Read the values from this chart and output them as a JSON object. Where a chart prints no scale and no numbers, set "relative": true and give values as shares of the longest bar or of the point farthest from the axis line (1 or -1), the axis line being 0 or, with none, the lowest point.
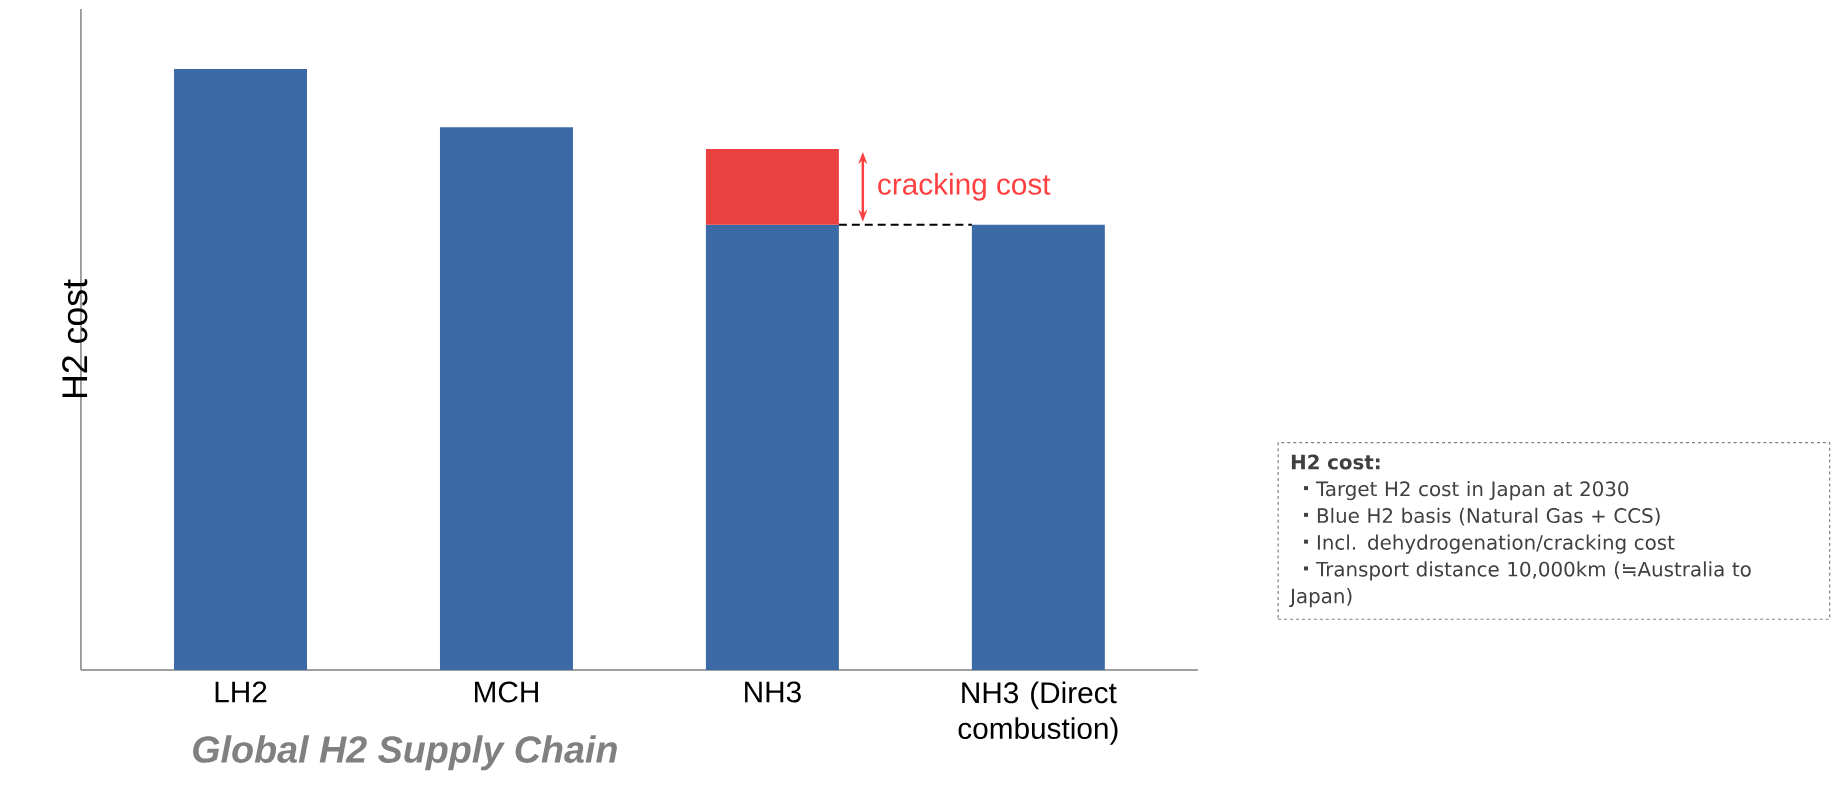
{
  "chart_data": {
    "type": "bar",
    "relative": true,
    "stacked": true,
    "ylabel": "H2 cost",
    "xlabel": "Global H2 Supply Chain",
    "categories": [
      "LH2",
      "MCH",
      "NH3",
      "NH3 (Direct combustion)"
    ],
    "series": [
      {
        "color": "#3b6aa6",
        "values": [
          1,
          0.903,
          0.741,
          0.741
        ]
      },
      {
        "color": "#e8413f",
        "values": [
          null,
          null,
          0.126,
          null
        ]
      }
    ],
    "ref_lines": [
      {
        "axis": "y",
        "value": 0.741,
        "line_style": "dashed",
        "color": "#000000"
      }
    ],
    "annotations": [
      "cracking cost",
      "H2 cost:",
      "Target H2 cost in Japan at 2030",
      "Blue H2 basis (Natural Gas + CCS)",
      "Incl. dehydrogenation/cracking cost",
      "Transport distance 10,000km (≒Australia to Japan)"
    ]
  }
}
